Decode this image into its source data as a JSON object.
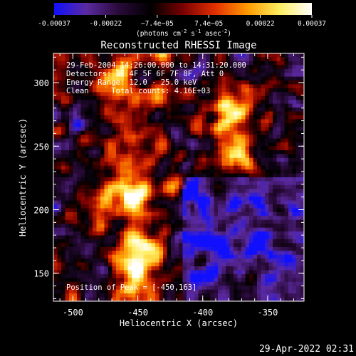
{
  "chart_data": {
    "type": "heatmap",
    "title": "Reconstructed RHESSI Image",
    "xlabel": "Heliocentric X (arcsec)",
    "ylabel": "Heliocentric Y (arcsec)",
    "xlim": [
      -515,
      -322
    ],
    "ylim": [
      128,
      323
    ],
    "x_ticks": [
      -500,
      -450,
      -400,
      -350
    ],
    "x_tick_labels": [
      "-500",
      "-450",
      "-400",
      "-350"
    ],
    "y_ticks": [
      150,
      200,
      250,
      300
    ],
    "y_tick_labels": [
      "150",
      "200",
      "250",
      "300"
    ],
    "colorbar": {
      "label_text": "(photons cm",
      "label_exp1": "-2",
      "label_mid": " s",
      "label_exp2": "-1",
      "label_end": " asec",
      "label_exp3": "-2",
      "label_close": ")",
      "range": [
        -0.00037,
        0.00037
      ],
      "ticks_upper": [
        -0.000222,
        7.4e-05
      ],
      "ticks_upper_labels": [
        "-0.00022",
        "7.4e-05"
      ],
      "ticks_lower": [
        -0.00037,
        -7.4e-05,
        0.000222,
        0.00037
      ],
      "ticks_lower_labels": [
        "-0.00037",
        "-7.4e-05",
        "0.00022",
        "0.00037"
      ],
      "ticks_mid": [
        -7.4e-05,
        7.4e-05
      ],
      "ticks_mid_labels": [
        "−7.4e−05",
        "7.4e−05"
      ],
      "lower_labels_shown": [
        "-0.00037",
        "-0.00022",
        "0.00022",
        "0.00037"
      ]
    },
    "annotations": [
      "29-Feb-2004 14:26:00.000 to 14:31:20.000",
      "Detectors: 3F 4F 5F 6F 7F 8F, Att 0",
      "Energy Range: 12.0 - 25.0 keV",
      "Clean     Total counts: 4.16E+03"
    ],
    "peak_label": "Position of Peak = [-450,163]",
    "peak_position": [
      -450,
      163
    ],
    "bright_sources": [
      {
        "x": -450,
        "y": 163,
        "intensity": 1.0
      },
      {
        "x": -372,
        "y": 242,
        "intensity": 0.95
      },
      {
        "x": -380,
        "y": 276,
        "intensity": 0.75
      },
      {
        "x": -455,
        "y": 212,
        "intensity": 0.7
      },
      {
        "x": -470,
        "y": 300,
        "intensity": 0.6
      }
    ],
    "colormap": [
      "#1010ff",
      "#5b2aa0",
      "#2a0a3a",
      "#000000",
      "#7a0000",
      "#e23000",
      "#ff9a00",
      "#ffee60",
      "#ffffff"
    ]
  },
  "timestamp": "29-Apr-2022 02:31"
}
